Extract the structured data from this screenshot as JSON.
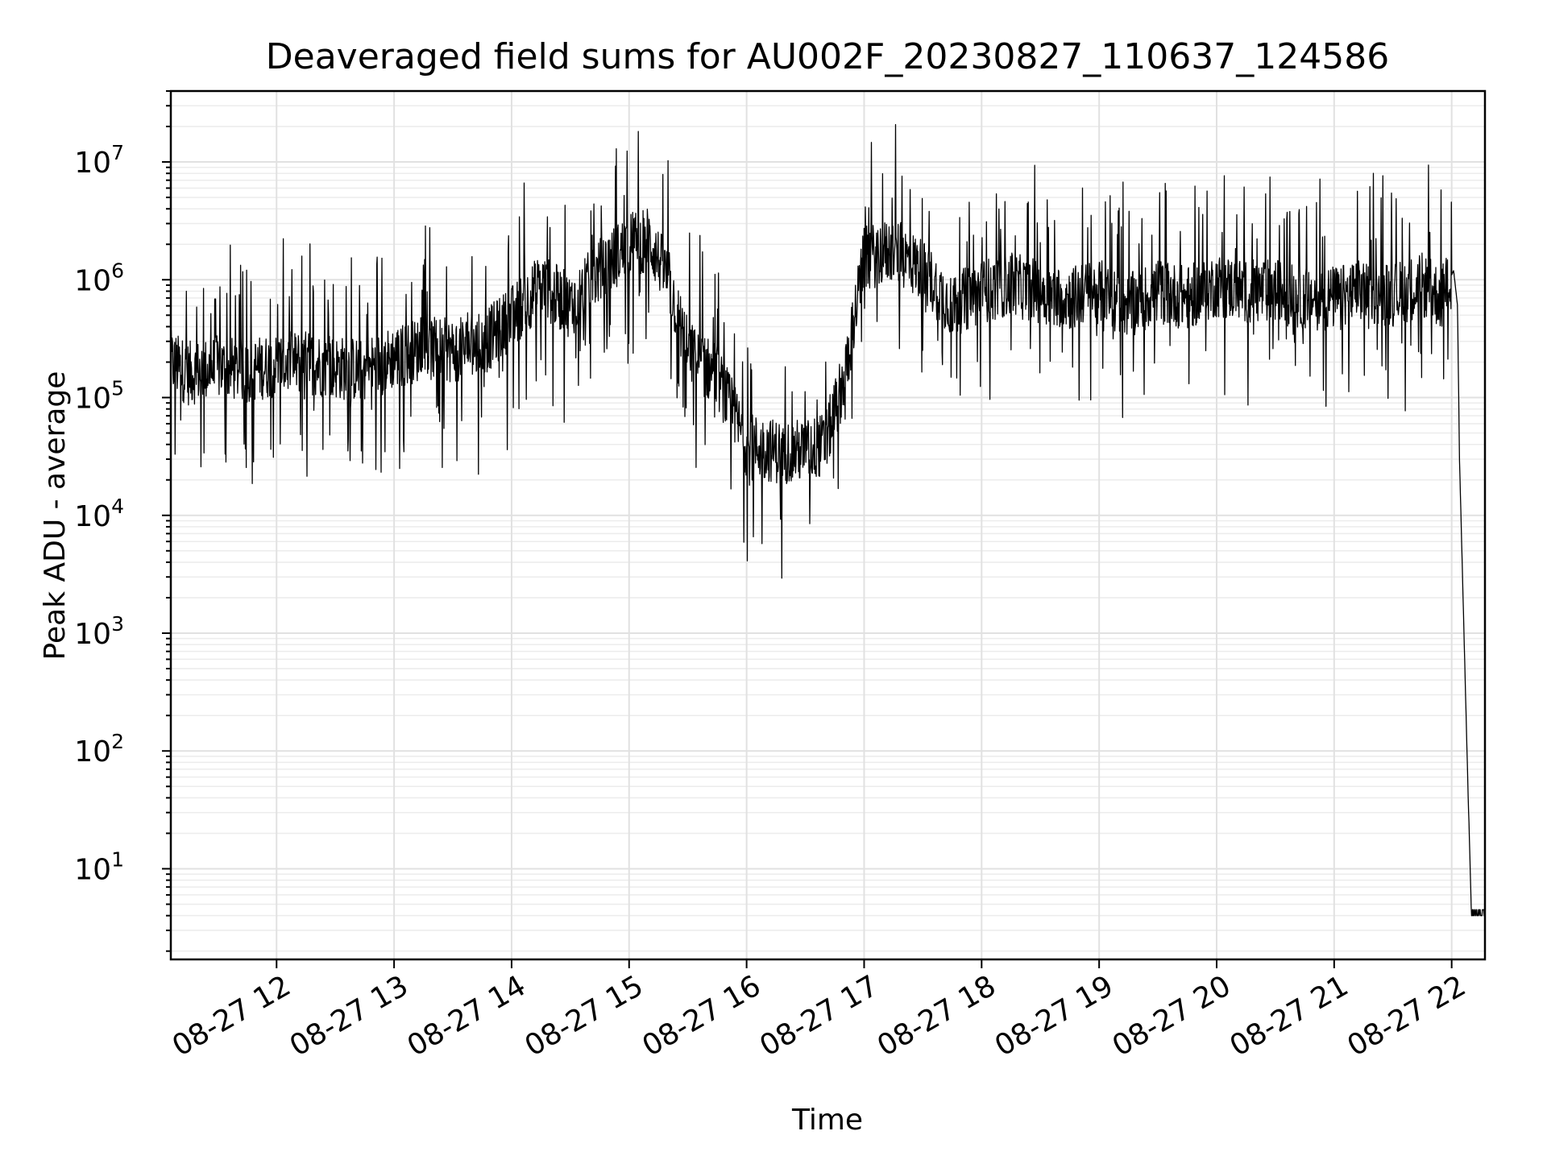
{
  "chart_data": {
    "type": "line",
    "title": "Deaveraged field sums for AU002F_20230827_110637_124586",
    "xlabel": "Time",
    "ylabel": "Peak ADU - average",
    "yscale": "log",
    "ylim": [
      1.7,
      40000000
    ],
    "xlim": [
      "2023-08-27 11:06",
      "2023-08-27 22:17"
    ],
    "grid": true,
    "xticks": [
      "08-27 12",
      "08-27 13",
      "08-27 14",
      "08-27 15",
      "08-27 16",
      "08-27 17",
      "08-27 18",
      "08-27 19",
      "08-27 20",
      "08-27 21",
      "08-27 22"
    ],
    "xtick_times": [
      "2023-08-27 12:00",
      "2023-08-27 13:00",
      "2023-08-27 14:00",
      "2023-08-27 15:00",
      "2023-08-27 16:00",
      "2023-08-27 17:00",
      "2023-08-27 18:00",
      "2023-08-27 19:00",
      "2023-08-27 20:00",
      "2023-08-27 21:00",
      "2023-08-27 22:00"
    ],
    "yticks": [
      {
        "base": "10",
        "exp": "1",
        "value": 10
      },
      {
        "base": "10",
        "exp": "2",
        "value": 100
      },
      {
        "base": "10",
        "exp": "3",
        "value": 1000
      },
      {
        "base": "10",
        "exp": "4",
        "value": 10000
      },
      {
        "base": "10",
        "exp": "5",
        "value": 100000
      },
      {
        "base": "10",
        "exp": "6",
        "value": 1000000
      },
      {
        "base": "10",
        "exp": "7",
        "value": 10000000
      }
    ],
    "series": [
      {
        "x": [
          "2023-08-27 11:06",
          "2023-08-27 11:15",
          "2023-08-27 11:30",
          "2023-08-27 11:45",
          "2023-08-27 12:00",
          "2023-08-27 12:15",
          "2023-08-27 12:30",
          "2023-08-27 12:45",
          "2023-08-27 13:00",
          "2023-08-27 13:15",
          "2023-08-27 13:30",
          "2023-08-27 13:45",
          "2023-08-27 14:00",
          "2023-08-27 14:15",
          "2023-08-27 14:30",
          "2023-08-27 14:45",
          "2023-08-27 15:00",
          "2023-08-27 15:10",
          "2023-08-27 15:20",
          "2023-08-27 15:30",
          "2023-08-27 15:45",
          "2023-08-27 16:00",
          "2023-08-27 16:15",
          "2023-08-27 16:30",
          "2023-08-27 16:40",
          "2023-08-27 16:50",
          "2023-08-27 17:00",
          "2023-08-27 17:15",
          "2023-08-27 17:30",
          "2023-08-27 17:45",
          "2023-08-27 18:00",
          "2023-08-27 18:15",
          "2023-08-27 18:30",
          "2023-08-27 18:45",
          "2023-08-27 19:00",
          "2023-08-27 19:15",
          "2023-08-27 19:30",
          "2023-08-27 19:45",
          "2023-08-27 20:00",
          "2023-08-27 20:15",
          "2023-08-27 20:30",
          "2023-08-27 20:45",
          "2023-08-27 21:00",
          "2023-08-27 21:15",
          "2023-08-27 21:30",
          "2023-08-27 21:45",
          "2023-08-27 21:55",
          "2023-08-27 22:01",
          "2023-08-27 22:03",
          "2023-08-27 22:04",
          "2023-08-27 22:10",
          "2023-08-27 22:17"
        ],
        "y": [
          200000,
          160000,
          180000,
          170000,
          190000,
          200000,
          180000,
          170000,
          220000,
          260000,
          250000,
          280000,
          480000,
          900000,
          600000,
          1200000,
          2000000,
          2200000,
          1000000,
          250000,
          150000,
          40000,
          35000,
          35000,
          40000,
          150000,
          1500000,
          1800000,
          1200000,
          600000,
          800000,
          900000,
          800000,
          700000,
          800000,
          600000,
          800000,
          700000,
          900000,
          800000,
          800000,
          700000,
          700000,
          800000,
          750000,
          900000,
          700000,
          1200000,
          600000,
          30000,
          4,
          4
        ]
      }
    ]
  }
}
